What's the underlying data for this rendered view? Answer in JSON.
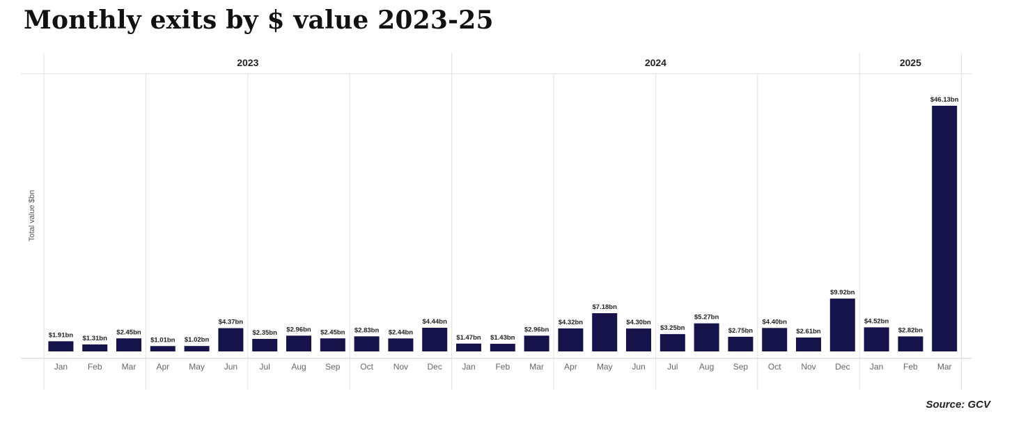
{
  "title": "Monthly exits by $ value 2023-25",
  "source": "Source: GCV",
  "colors": {
    "bar": "#16124a",
    "grid": "#e2e2e2",
    "axis": "#cccccc"
  },
  "chart_data": {
    "type": "bar",
    "title": "Monthly exits by $ value 2023-25",
    "ylabel": "Total value $bn",
    "xlabel": "",
    "ylim": [
      0,
      46.13
    ],
    "grid": true,
    "legend": "none",
    "year_groups": [
      {
        "label": "2023",
        "months": 12
      },
      {
        "label": "2024",
        "months": 12
      },
      {
        "label": "2025",
        "months": 3
      }
    ],
    "categories": [
      "Jan",
      "Feb",
      "Mar",
      "Apr",
      "May",
      "Jun",
      "Jul",
      "Aug",
      "Sep",
      "Oct",
      "Nov",
      "Dec",
      "Jan",
      "Feb",
      "Mar",
      "Apr",
      "May",
      "Jun",
      "Jul",
      "Aug",
      "Sep",
      "Oct",
      "Nov",
      "Dec",
      "Jan",
      "Feb",
      "Mar"
    ],
    "values": [
      1.91,
      1.31,
      2.45,
      1.01,
      1.02,
      4.37,
      2.35,
      2.96,
      2.45,
      2.83,
      2.44,
      4.44,
      1.47,
      1.43,
      2.96,
      4.32,
      7.18,
      4.3,
      3.25,
      5.27,
      2.75,
      4.4,
      2.61,
      9.92,
      4.52,
      2.82,
      46.13
    ],
    "data_labels": [
      "$1.91bn",
      "$1.31bn",
      "$2.45bn",
      "$1.01bn",
      "$1.02bn",
      "$4.37bn",
      "$2.35bn",
      "$2.96bn",
      "$2.45bn",
      "$2.83bn",
      "$2.44bn",
      "$4.44bn",
      "$1.47bn",
      "$1.43bn",
      "$2.96bn",
      "$4.32bn",
      "$7.18bn",
      "$4.30bn",
      "$3.25bn",
      "$5.27bn",
      "$2.75bn",
      "$4.40bn",
      "$2.61bn",
      "$9.92bn",
      "$4.52bn",
      "$2.82bn",
      "$46.13bn"
    ]
  }
}
